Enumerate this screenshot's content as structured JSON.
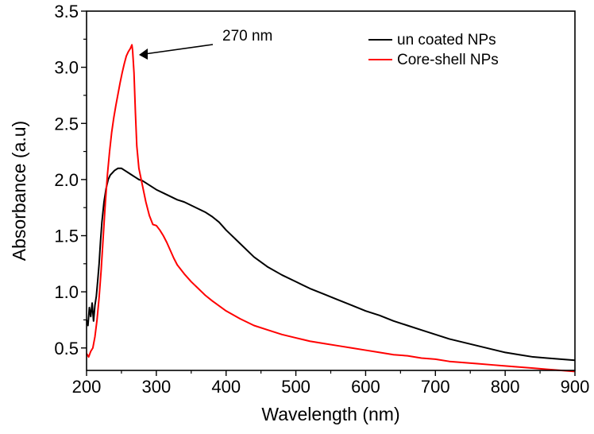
{
  "chart_data": {
    "type": "line",
    "title": "",
    "xlabel": "Wavelength (nm)",
    "ylabel": "Absorbance (a.u)",
    "xlim": [
      200,
      900
    ],
    "ylim": [
      0.3,
      3.5
    ],
    "x_ticks": [
      200,
      300,
      400,
      500,
      600,
      700,
      800,
      900
    ],
    "x_tick_labels": [
      "200",
      "300",
      "400",
      "500",
      "600",
      "700",
      "800",
      "900"
    ],
    "y_ticks": [
      0.5,
      1.0,
      1.5,
      2.0,
      2.5,
      3.0,
      3.5
    ],
    "y_tick_labels": [
      "0.5",
      "1.0",
      "1.5",
      "2.0",
      "2.5",
      "3.0",
      "3.5"
    ],
    "grid": false,
    "legend": {
      "placement": "top-right",
      "entries": [
        "un coated NPs",
        "Core-shell NPs"
      ]
    },
    "annotation": {
      "text": "270 nm",
      "points_to": {
        "x": 268,
        "y": 3.1
      }
    },
    "series": [
      {
        "name": "un coated NPs",
        "color": "#000000",
        "x": [
          200,
          202,
          204,
          206,
          208,
          210,
          212,
          214,
          216,
          218,
          220,
          222,
          225,
          228,
          231,
          234,
          237,
          240,
          245,
          250,
          255,
          260,
          265,
          270,
          275,
          280,
          290,
          300,
          310,
          320,
          330,
          340,
          350,
          360,
          370,
          380,
          390,
          400,
          420,
          440,
          460,
          480,
          500,
          520,
          540,
          560,
          580,
          600,
          620,
          640,
          660,
          680,
          700,
          720,
          740,
          760,
          780,
          800,
          820,
          840,
          860,
          880,
          900
        ],
        "y": [
          0.75,
          0.7,
          0.86,
          0.78,
          0.9,
          0.74,
          0.88,
          0.96,
          1.1,
          1.25,
          1.45,
          1.62,
          1.8,
          1.92,
          2.0,
          2.04,
          2.06,
          2.08,
          2.1,
          2.1,
          2.08,
          2.06,
          2.04,
          2.02,
          2.0,
          1.99,
          1.95,
          1.91,
          1.88,
          1.85,
          1.82,
          1.8,
          1.77,
          1.74,
          1.71,
          1.67,
          1.62,
          1.55,
          1.43,
          1.31,
          1.22,
          1.15,
          1.09,
          1.03,
          0.98,
          0.93,
          0.88,
          0.83,
          0.79,
          0.74,
          0.7,
          0.66,
          0.62,
          0.58,
          0.55,
          0.52,
          0.49,
          0.46,
          0.44,
          0.42,
          0.41,
          0.4,
          0.39
        ]
      },
      {
        "name": "Core-shell NPs",
        "color": "#ff0000",
        "x": [
          200,
          203,
          206,
          209,
          212,
          215,
          218,
          221,
          224,
          227,
          230,
          233,
          236,
          239,
          242,
          245,
          248,
          251,
          254,
          257,
          260,
          263,
          265,
          266,
          268,
          270,
          272,
          275,
          280,
          285,
          290,
          295,
          300,
          305,
          310,
          315,
          320,
          325,
          330,
          340,
          350,
          360,
          370,
          380,
          400,
          420,
          440,
          460,
          480,
          500,
          520,
          540,
          560,
          580,
          600,
          620,
          640,
          660,
          680,
          700,
          720,
          740,
          760,
          780,
          800,
          820,
          840,
          860,
          880,
          900
        ],
        "y": [
          0.45,
          0.42,
          0.47,
          0.5,
          0.6,
          0.75,
          0.95,
          1.2,
          1.5,
          1.8,
          2.05,
          2.25,
          2.42,
          2.55,
          2.66,
          2.76,
          2.86,
          2.95,
          3.03,
          3.1,
          3.14,
          3.17,
          3.2,
          3.15,
          2.95,
          2.6,
          2.3,
          2.1,
          1.95,
          1.8,
          1.68,
          1.6,
          1.59,
          1.55,
          1.5,
          1.44,
          1.37,
          1.3,
          1.24,
          1.16,
          1.09,
          1.03,
          0.97,
          0.92,
          0.83,
          0.76,
          0.7,
          0.66,
          0.62,
          0.59,
          0.56,
          0.54,
          0.52,
          0.5,
          0.48,
          0.46,
          0.44,
          0.43,
          0.41,
          0.4,
          0.38,
          0.37,
          0.36,
          0.35,
          0.34,
          0.33,
          0.32,
          0.31,
          0.3,
          0.29
        ]
      }
    ]
  }
}
